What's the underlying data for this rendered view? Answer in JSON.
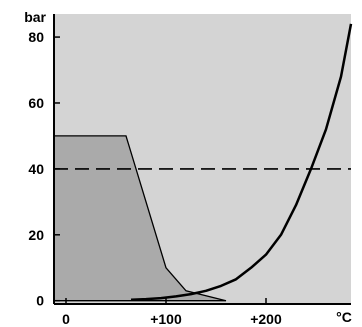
{
  "chart_data": {
    "type": "line",
    "title": "",
    "xlabel": "",
    "ylabel": "",
    "x_unit": "°C",
    "y_unit": "bar",
    "xlim": [
      -12,
      285
    ],
    "ylim": [
      -1,
      87
    ],
    "x_ticks": [
      {
        "value": 0,
        "label": "0"
      },
      {
        "value": 100,
        "label": "+100"
      },
      {
        "value": 200,
        "label": "+200"
      }
    ],
    "y_ticks": [
      {
        "value": 0,
        "label": "0"
      },
      {
        "value": 20,
        "label": "20"
      },
      {
        "value": 40,
        "label": "40"
      },
      {
        "value": 60,
        "label": "60"
      },
      {
        "value": 80,
        "label": "80"
      }
    ],
    "grid": false,
    "legend": "none",
    "series": [
      {
        "style": "shaded-area",
        "color": "#aaaaaa",
        "x": [
          -12,
          60,
          80,
          100,
          120,
          160
        ],
        "y": [
          50,
          50,
          30,
          10,
          3,
          0
        ]
      },
      {
        "style": "solid-line",
        "color": "#000000",
        "x": [
          65,
          80,
          95,
          110,
          125,
          140,
          155,
          170,
          185,
          200,
          215,
          230,
          245,
          260,
          275,
          285
        ],
        "y": [
          0.3,
          0.5,
          0.8,
          1.3,
          2.0,
          3.0,
          4.5,
          6.5,
          10,
          14,
          20,
          29,
          40,
          52,
          68,
          84
        ]
      },
      {
        "style": "dashed-line",
        "color": "#000000",
        "x": [
          -12,
          285
        ],
        "y": [
          40,
          40
        ]
      }
    ]
  },
  "colors": {
    "plot_background": "#d4d4d4",
    "area_fill": "#aaaaaa",
    "line": "#000000"
  }
}
